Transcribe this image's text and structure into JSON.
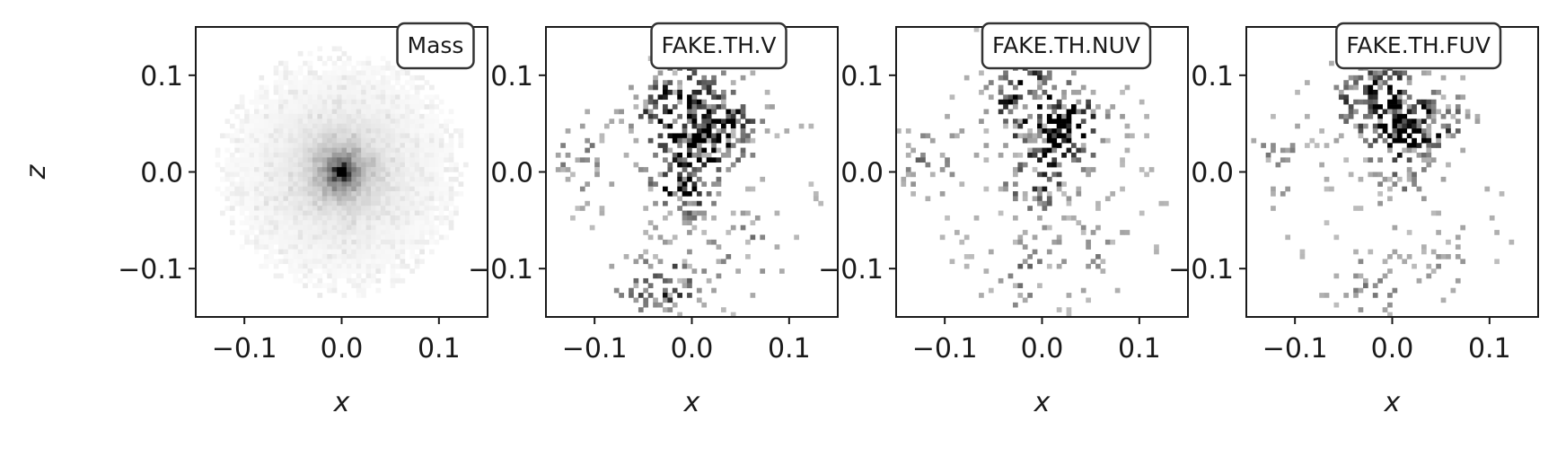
{
  "chart_data": {
    "type": "heatmap",
    "colormap": "gray_r",
    "xlabel": "x",
    "ylabel": "z",
    "xlim": [
      -0.15,
      0.15
    ],
    "ylim": [
      -0.15,
      0.15
    ],
    "xticks": [
      {
        "value": -0.1,
        "label": "−0.1"
      },
      {
        "value": 0.0,
        "label": "0.0"
      },
      {
        "value": 0.1,
        "label": "0.1"
      }
    ],
    "yticks": [
      {
        "value": 0.1,
        "label": "0.1"
      },
      {
        "value": 0.0,
        "label": "0.0"
      },
      {
        "value": -0.1,
        "label": "−0.1"
      }
    ],
    "panels": [
      {
        "title": "Mass",
        "show_ylabel": true,
        "distribution": "centrally concentrated diffuse halo",
        "peak": [
          0.0,
          0.0
        ],
        "clumps": []
      },
      {
        "title": "FAKE.TH.V",
        "show_ylabel": false,
        "distribution": "sparse pixels tracing an arc, densest clump near center",
        "peak": [
          -0.005,
          -0.015
        ],
        "clumps": [
          {
            "x": -0.01,
            "z": -0.012,
            "weight": 1.0
          },
          {
            "x": 0.01,
            "z": 0.035,
            "weight": 0.9
          },
          {
            "x": 0.035,
            "z": 0.05,
            "weight": 0.8
          },
          {
            "x": -0.03,
            "z": 0.06,
            "weight": 0.6
          },
          {
            "x": -0.005,
            "z": 0.095,
            "weight": 0.5
          },
          {
            "x": -0.115,
            "z": 0.01,
            "weight": 0.35
          },
          {
            "x": -0.02,
            "z": -0.115,
            "weight": 0.5
          },
          {
            "x": 0.05,
            "z": -0.08,
            "weight": 0.35
          },
          {
            "x": -0.05,
            "z": -0.13,
            "weight": 0.3
          }
        ]
      },
      {
        "title": "FAKE.TH.NUV",
        "show_ylabel": false,
        "distribution": "sparse pixels tracing an arc, fainter central clump",
        "peak": [
          -0.005,
          -0.015
        ],
        "clumps": [
          {
            "x": -0.005,
            "z": -0.015,
            "weight": 0.6
          },
          {
            "x": 0.01,
            "z": 0.04,
            "weight": 0.8
          },
          {
            "x": 0.035,
            "z": 0.05,
            "weight": 0.8
          },
          {
            "x": -0.03,
            "z": 0.07,
            "weight": 0.6
          },
          {
            "x": -0.005,
            "z": 0.1,
            "weight": 0.5
          },
          {
            "x": -0.115,
            "z": 0.01,
            "weight": 0.35
          },
          {
            "x": -0.02,
            "z": -0.11,
            "weight": 0.35
          },
          {
            "x": 0.05,
            "z": -0.08,
            "weight": 0.25
          }
        ]
      },
      {
        "title": "FAKE.TH.FUV",
        "show_ylabel": false,
        "distribution": "sparse pixels tracing an arc, faint center",
        "peak": [
          0.02,
          0.04
        ],
        "clumps": [
          {
            "x": 0.0,
            "z": -0.01,
            "weight": 0.3
          },
          {
            "x": 0.01,
            "z": 0.045,
            "weight": 0.8
          },
          {
            "x": 0.04,
            "z": 0.05,
            "weight": 0.7
          },
          {
            "x": -0.03,
            "z": 0.075,
            "weight": 0.6
          },
          {
            "x": -0.005,
            "z": 0.1,
            "weight": 0.45
          },
          {
            "x": -0.115,
            "z": 0.01,
            "weight": 0.3
          },
          {
            "x": -0.02,
            "z": -0.115,
            "weight": 0.3
          },
          {
            "x": 0.05,
            "z": -0.09,
            "weight": 0.2
          }
        ]
      }
    ]
  }
}
